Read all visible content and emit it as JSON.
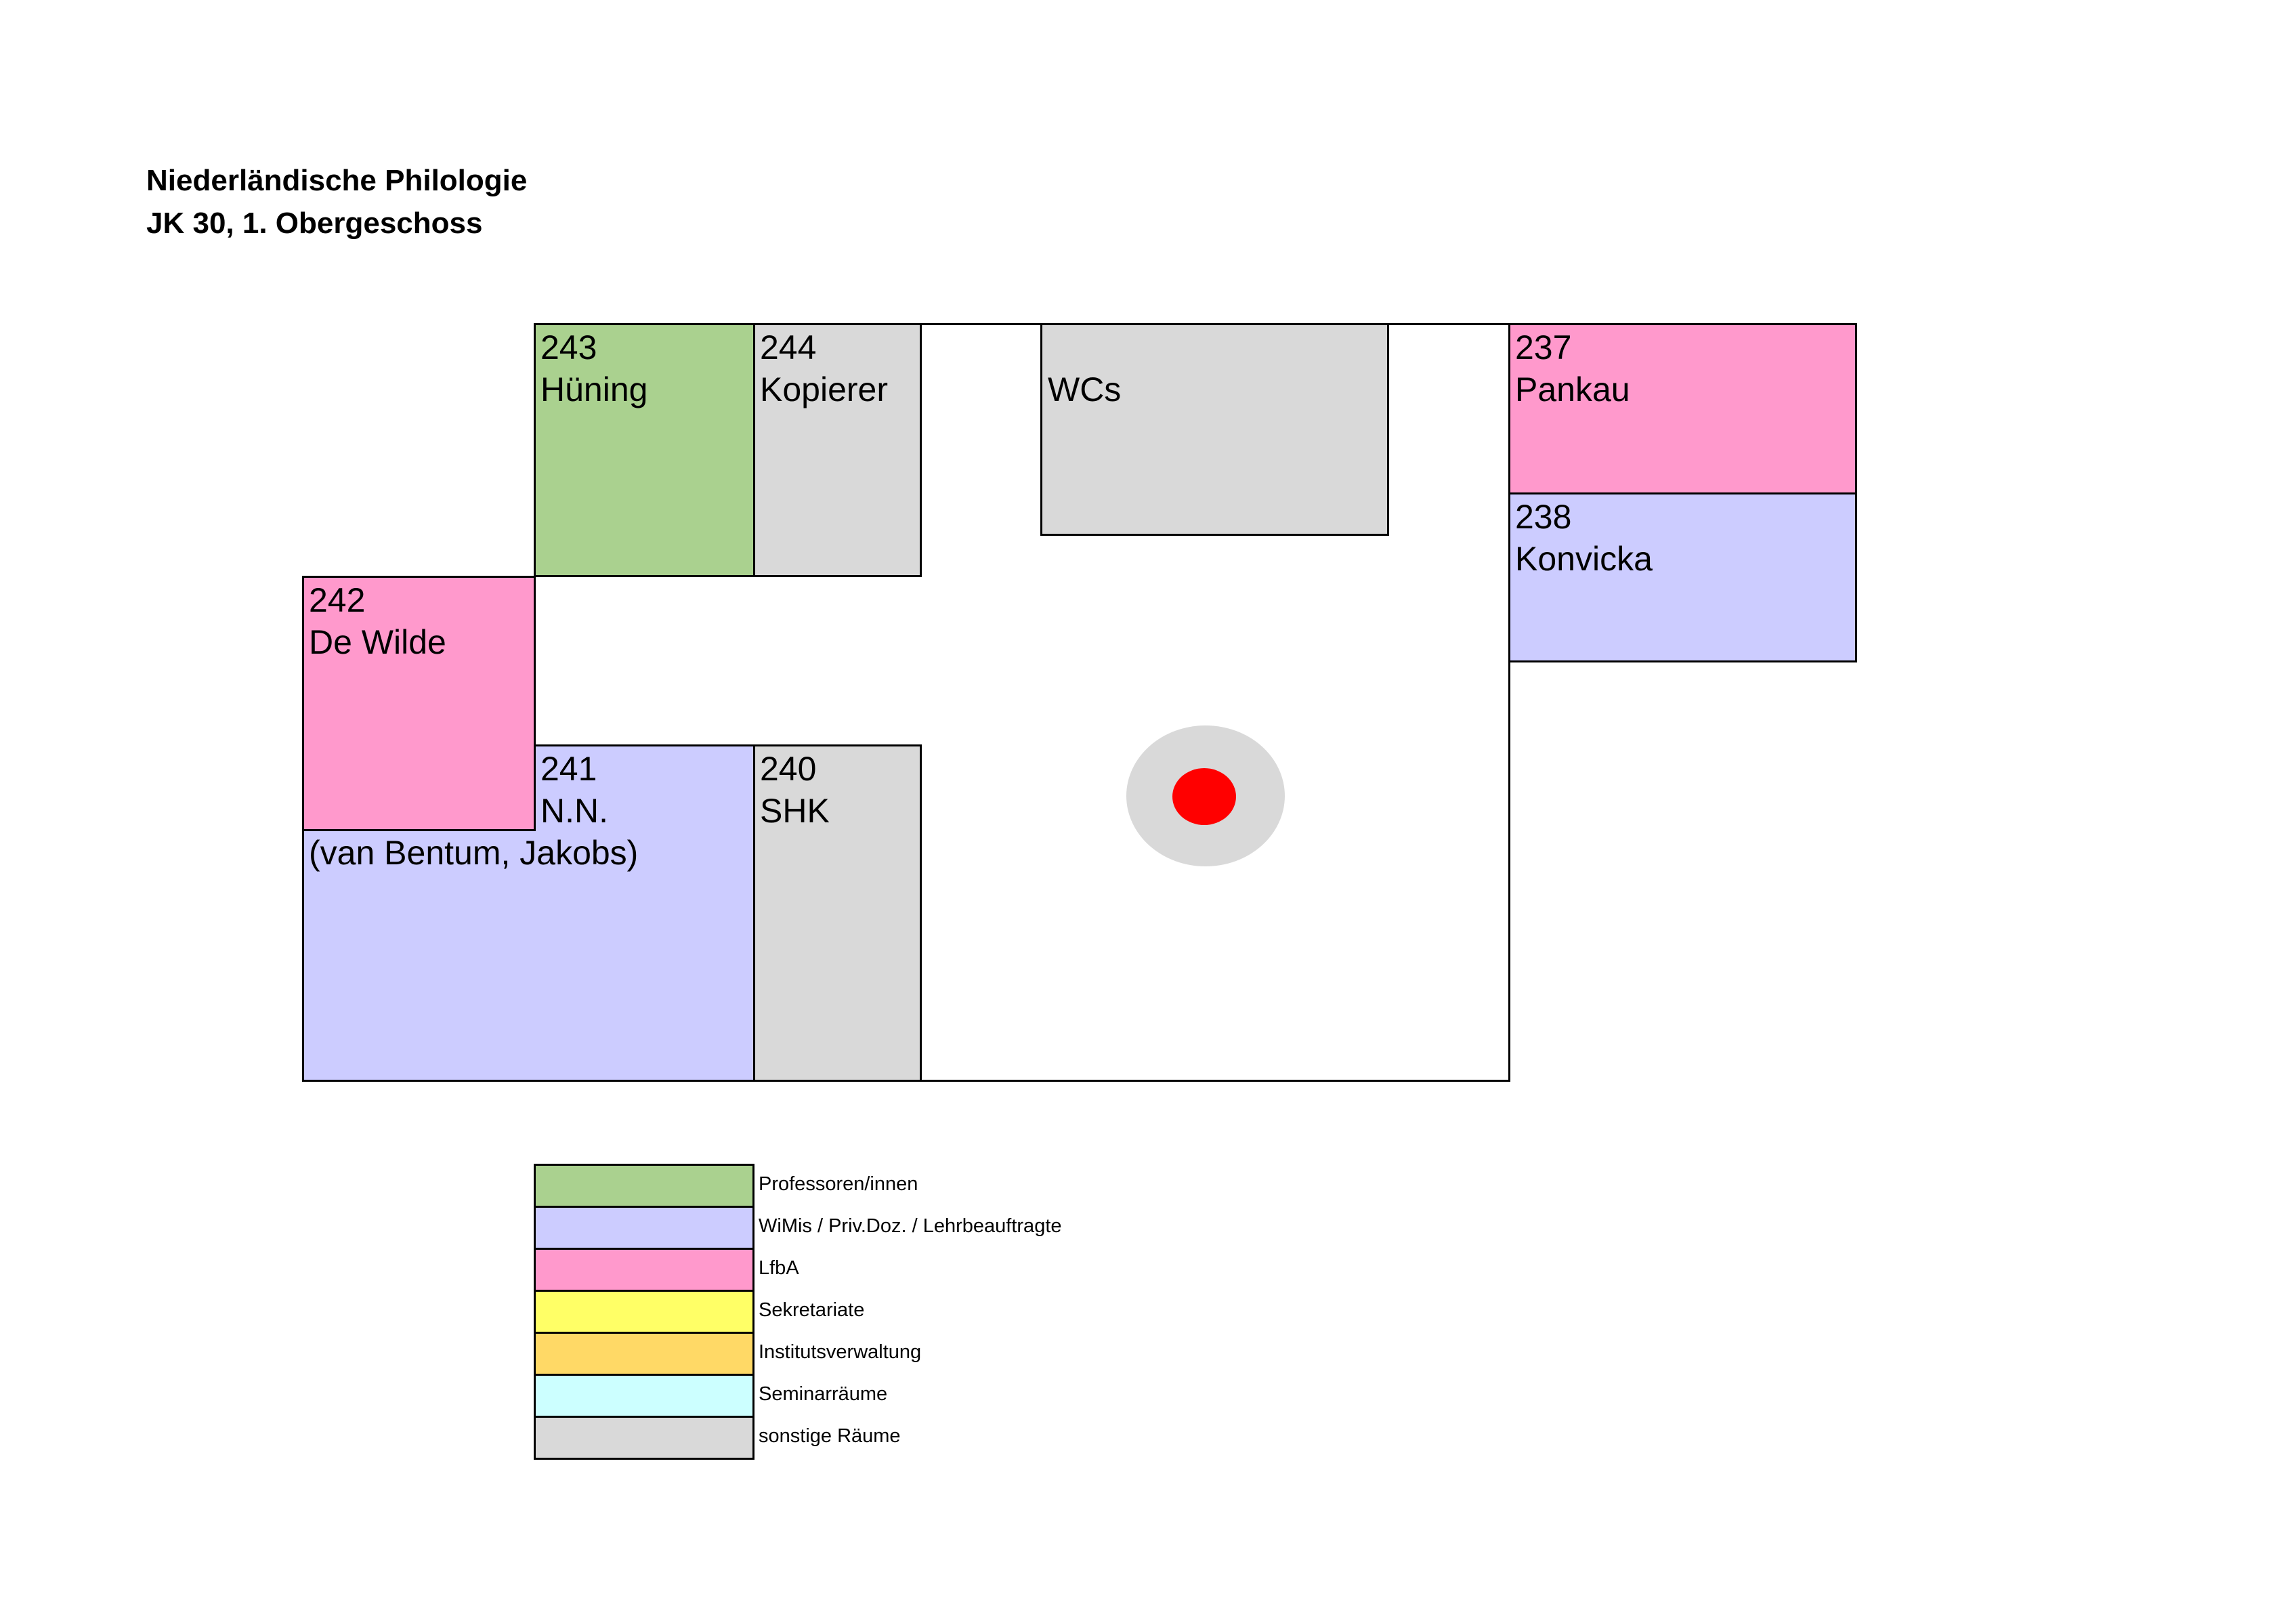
{
  "header": {
    "title": "Niederländische Philologie",
    "subtitle": "JK 30, 1. Obergeschoss"
  },
  "rooms": {
    "r243": {
      "number": "243",
      "name": "Hüning",
      "category": "prof"
    },
    "r244": {
      "number": "244",
      "name": "Kopierer",
      "category": "other"
    },
    "wcs": {
      "number": "",
      "name": "WCs",
      "category": "other"
    },
    "r237": {
      "number": "237",
      "name": "Pankau",
      "category": "lfba"
    },
    "r238": {
      "number": "238",
      "name": "Konvicka",
      "category": "wimi"
    },
    "r242": {
      "number": "242",
      "name": "De Wilde",
      "category": "lfba"
    },
    "r241": {
      "number": "241",
      "name": "N.N.",
      "note": "(van Bentum, Jakobs)",
      "category": "wimi"
    },
    "r240": {
      "number": "240",
      "name": "SHK",
      "category": "other"
    }
  },
  "marker": {
    "meaning": "you-are-here",
    "color": "#ff0000",
    "halo_color": "#d9d9d9"
  },
  "legend": {
    "items": [
      {
        "label": "Professoren/innen",
        "color": "#aad18f"
      },
      {
        "label": "WiMis / Priv.Doz. / Lehrbeauftragte",
        "color": "#ccccff"
      },
      {
        "label": "LfbA",
        "color": "#ff99cc"
      },
      {
        "label": "Sekretariate",
        "color": "#ffff66"
      },
      {
        "label": "Institutsverwaltung",
        "color": "#ffd966"
      },
      {
        "label": "Seminarräume",
        "color": "#ccffff"
      },
      {
        "label": "sonstige Räume",
        "color": "#d9d9d9"
      }
    ]
  }
}
